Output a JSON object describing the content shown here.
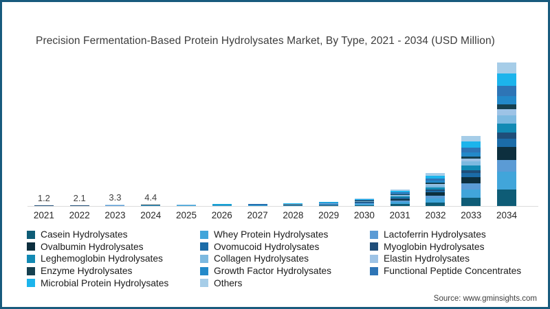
{
  "frame": {
    "border_color": "#185a7d",
    "background": "#ffffff"
  },
  "title": "Precision Fermentation-Based Protein Hydrolysates Market, By Type, 2021 - 2034 (USD Million)",
  "source_text": "Source: www.gminsights.com",
  "chart_data": {
    "type": "bar",
    "stacked": true,
    "title": "Precision Fermentation-Based Protein Hydrolysates Market, By Type, 2021 - 2034 (USD Million)",
    "xlabel": "",
    "ylabel": "USD Million",
    "legend_position": "bottom",
    "grid": false,
    "y_axis_shown": false,
    "categories": [
      "2021",
      "2022",
      "2023",
      "2024",
      "2025",
      "2026",
      "2027",
      "2028",
      "2029",
      "2030",
      "2031",
      "2032",
      "2033",
      "2034"
    ],
    "totals": [
      1.2,
      2.1,
      3.3,
      4.4,
      4.9,
      5.6,
      6.5,
      8,
      12,
      22,
      48,
      96,
      205,
      420
    ],
    "data_labels": [
      "1.2",
      "2.1",
      "3.3",
      "4.4",
      "",
      "",
      "",
      "",
      "",
      "",
      "",
      "",
      "",
      ""
    ],
    "series": [
      {
        "name": "Casein Hydrolysates",
        "color": "#0E5C76",
        "share": 0.115
      },
      {
        "name": "Whey Protein Hydrolysates",
        "color": "#41A5DA",
        "share": 0.125
      },
      {
        "name": "Lactoferrin Hydrolysates",
        "color": "#5B9BD5",
        "share": 0.082
      },
      {
        "name": "Ovalbumin Hydrolysates",
        "color": "#0D2F3E",
        "share": 0.088
      },
      {
        "name": "Ovomucoid Hydrolysates",
        "color": "#1B6CA8",
        "share": 0.06
      },
      {
        "name": "Myoglobin Hydrolysates",
        "color": "#1F4E79",
        "share": 0.04
      },
      {
        "name": "Leghemoglobin Hydrolysates",
        "color": "#128AB4",
        "share": 0.065
      },
      {
        "name": "Collagen Hydrolysates",
        "color": "#7CB9E0",
        "share": 0.058
      },
      {
        "name": "Elastin Hydrolysates",
        "color": "#9DC3E6",
        "share": 0.04
      },
      {
        "name": "Enzyme Hydrolysates",
        "color": "#16404F",
        "share": 0.034
      },
      {
        "name": "Growth Factor Hydrolysates",
        "color": "#2389C9",
        "share": 0.058
      },
      {
        "name": "Functional Peptide Concentrates",
        "color": "#2E75B6",
        "share": 0.07
      },
      {
        "name": "Microbial Protein Hydrolysates",
        "color": "#1CB4EC",
        "share": 0.09
      },
      {
        "name": "Others",
        "color": "#A6CDE8",
        "share": 0.075
      }
    ]
  }
}
